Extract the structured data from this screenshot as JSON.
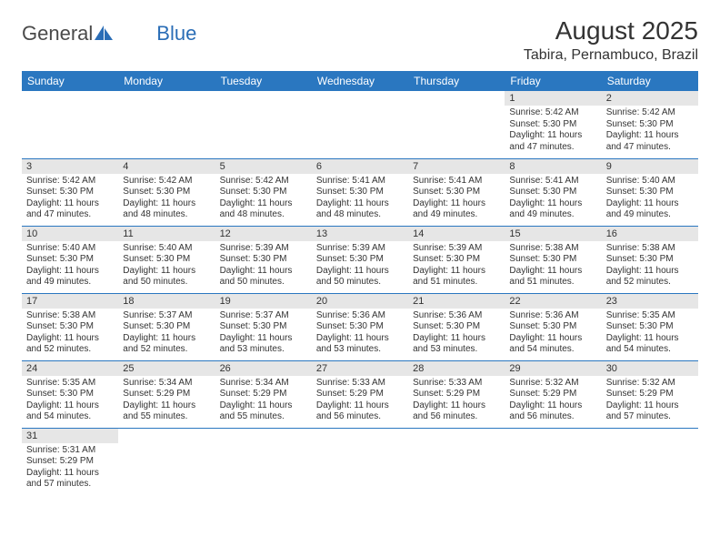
{
  "brand": {
    "name_a": "General",
    "name_b": "Blue"
  },
  "title": "August 2025",
  "location": "Tabira, Pernambuco, Brazil",
  "colors": {
    "header_bg": "#2a77c0",
    "header_text": "#ffffff",
    "daynum_bg": "#e6e6e6",
    "cell_border": "#2a77c0",
    "text": "#333333",
    "brand_gray": "#4a4a4a",
    "brand_blue": "#2a6db6"
  },
  "weekdays": [
    "Sunday",
    "Monday",
    "Tuesday",
    "Wednesday",
    "Thursday",
    "Friday",
    "Saturday"
  ],
  "weeks": [
    [
      null,
      null,
      null,
      null,
      null,
      {
        "n": "1",
        "sr": "Sunrise: 5:42 AM",
        "ss": "Sunset: 5:30 PM",
        "dl": "Daylight: 11 hours and 47 minutes."
      },
      {
        "n": "2",
        "sr": "Sunrise: 5:42 AM",
        "ss": "Sunset: 5:30 PM",
        "dl": "Daylight: 11 hours and 47 minutes."
      }
    ],
    [
      {
        "n": "3",
        "sr": "Sunrise: 5:42 AM",
        "ss": "Sunset: 5:30 PM",
        "dl": "Daylight: 11 hours and 47 minutes."
      },
      {
        "n": "4",
        "sr": "Sunrise: 5:42 AM",
        "ss": "Sunset: 5:30 PM",
        "dl": "Daylight: 11 hours and 48 minutes."
      },
      {
        "n": "5",
        "sr": "Sunrise: 5:42 AM",
        "ss": "Sunset: 5:30 PM",
        "dl": "Daylight: 11 hours and 48 minutes."
      },
      {
        "n": "6",
        "sr": "Sunrise: 5:41 AM",
        "ss": "Sunset: 5:30 PM",
        "dl": "Daylight: 11 hours and 48 minutes."
      },
      {
        "n": "7",
        "sr": "Sunrise: 5:41 AM",
        "ss": "Sunset: 5:30 PM",
        "dl": "Daylight: 11 hours and 49 minutes."
      },
      {
        "n": "8",
        "sr": "Sunrise: 5:41 AM",
        "ss": "Sunset: 5:30 PM",
        "dl": "Daylight: 11 hours and 49 minutes."
      },
      {
        "n": "9",
        "sr": "Sunrise: 5:40 AM",
        "ss": "Sunset: 5:30 PM",
        "dl": "Daylight: 11 hours and 49 minutes."
      }
    ],
    [
      {
        "n": "10",
        "sr": "Sunrise: 5:40 AM",
        "ss": "Sunset: 5:30 PM",
        "dl": "Daylight: 11 hours and 49 minutes."
      },
      {
        "n": "11",
        "sr": "Sunrise: 5:40 AM",
        "ss": "Sunset: 5:30 PM",
        "dl": "Daylight: 11 hours and 50 minutes."
      },
      {
        "n": "12",
        "sr": "Sunrise: 5:39 AM",
        "ss": "Sunset: 5:30 PM",
        "dl": "Daylight: 11 hours and 50 minutes."
      },
      {
        "n": "13",
        "sr": "Sunrise: 5:39 AM",
        "ss": "Sunset: 5:30 PM",
        "dl": "Daylight: 11 hours and 50 minutes."
      },
      {
        "n": "14",
        "sr": "Sunrise: 5:39 AM",
        "ss": "Sunset: 5:30 PM",
        "dl": "Daylight: 11 hours and 51 minutes."
      },
      {
        "n": "15",
        "sr": "Sunrise: 5:38 AM",
        "ss": "Sunset: 5:30 PM",
        "dl": "Daylight: 11 hours and 51 minutes."
      },
      {
        "n": "16",
        "sr": "Sunrise: 5:38 AM",
        "ss": "Sunset: 5:30 PM",
        "dl": "Daylight: 11 hours and 52 minutes."
      }
    ],
    [
      {
        "n": "17",
        "sr": "Sunrise: 5:38 AM",
        "ss": "Sunset: 5:30 PM",
        "dl": "Daylight: 11 hours and 52 minutes."
      },
      {
        "n": "18",
        "sr": "Sunrise: 5:37 AM",
        "ss": "Sunset: 5:30 PM",
        "dl": "Daylight: 11 hours and 52 minutes."
      },
      {
        "n": "19",
        "sr": "Sunrise: 5:37 AM",
        "ss": "Sunset: 5:30 PM",
        "dl": "Daylight: 11 hours and 53 minutes."
      },
      {
        "n": "20",
        "sr": "Sunrise: 5:36 AM",
        "ss": "Sunset: 5:30 PM",
        "dl": "Daylight: 11 hours and 53 minutes."
      },
      {
        "n": "21",
        "sr": "Sunrise: 5:36 AM",
        "ss": "Sunset: 5:30 PM",
        "dl": "Daylight: 11 hours and 53 minutes."
      },
      {
        "n": "22",
        "sr": "Sunrise: 5:36 AM",
        "ss": "Sunset: 5:30 PM",
        "dl": "Daylight: 11 hours and 54 minutes."
      },
      {
        "n": "23",
        "sr": "Sunrise: 5:35 AM",
        "ss": "Sunset: 5:30 PM",
        "dl": "Daylight: 11 hours and 54 minutes."
      }
    ],
    [
      {
        "n": "24",
        "sr": "Sunrise: 5:35 AM",
        "ss": "Sunset: 5:30 PM",
        "dl": "Daylight: 11 hours and 54 minutes."
      },
      {
        "n": "25",
        "sr": "Sunrise: 5:34 AM",
        "ss": "Sunset: 5:29 PM",
        "dl": "Daylight: 11 hours and 55 minutes."
      },
      {
        "n": "26",
        "sr": "Sunrise: 5:34 AM",
        "ss": "Sunset: 5:29 PM",
        "dl": "Daylight: 11 hours and 55 minutes."
      },
      {
        "n": "27",
        "sr": "Sunrise: 5:33 AM",
        "ss": "Sunset: 5:29 PM",
        "dl": "Daylight: 11 hours and 56 minutes."
      },
      {
        "n": "28",
        "sr": "Sunrise: 5:33 AM",
        "ss": "Sunset: 5:29 PM",
        "dl": "Daylight: 11 hours and 56 minutes."
      },
      {
        "n": "29",
        "sr": "Sunrise: 5:32 AM",
        "ss": "Sunset: 5:29 PM",
        "dl": "Daylight: 11 hours and 56 minutes."
      },
      {
        "n": "30",
        "sr": "Sunrise: 5:32 AM",
        "ss": "Sunset: 5:29 PM",
        "dl": "Daylight: 11 hours and 57 minutes."
      }
    ],
    [
      {
        "n": "31",
        "sr": "Sunrise: 5:31 AM",
        "ss": "Sunset: 5:29 PM",
        "dl": "Daylight: 11 hours and 57 minutes."
      },
      null,
      null,
      null,
      null,
      null,
      null
    ]
  ]
}
